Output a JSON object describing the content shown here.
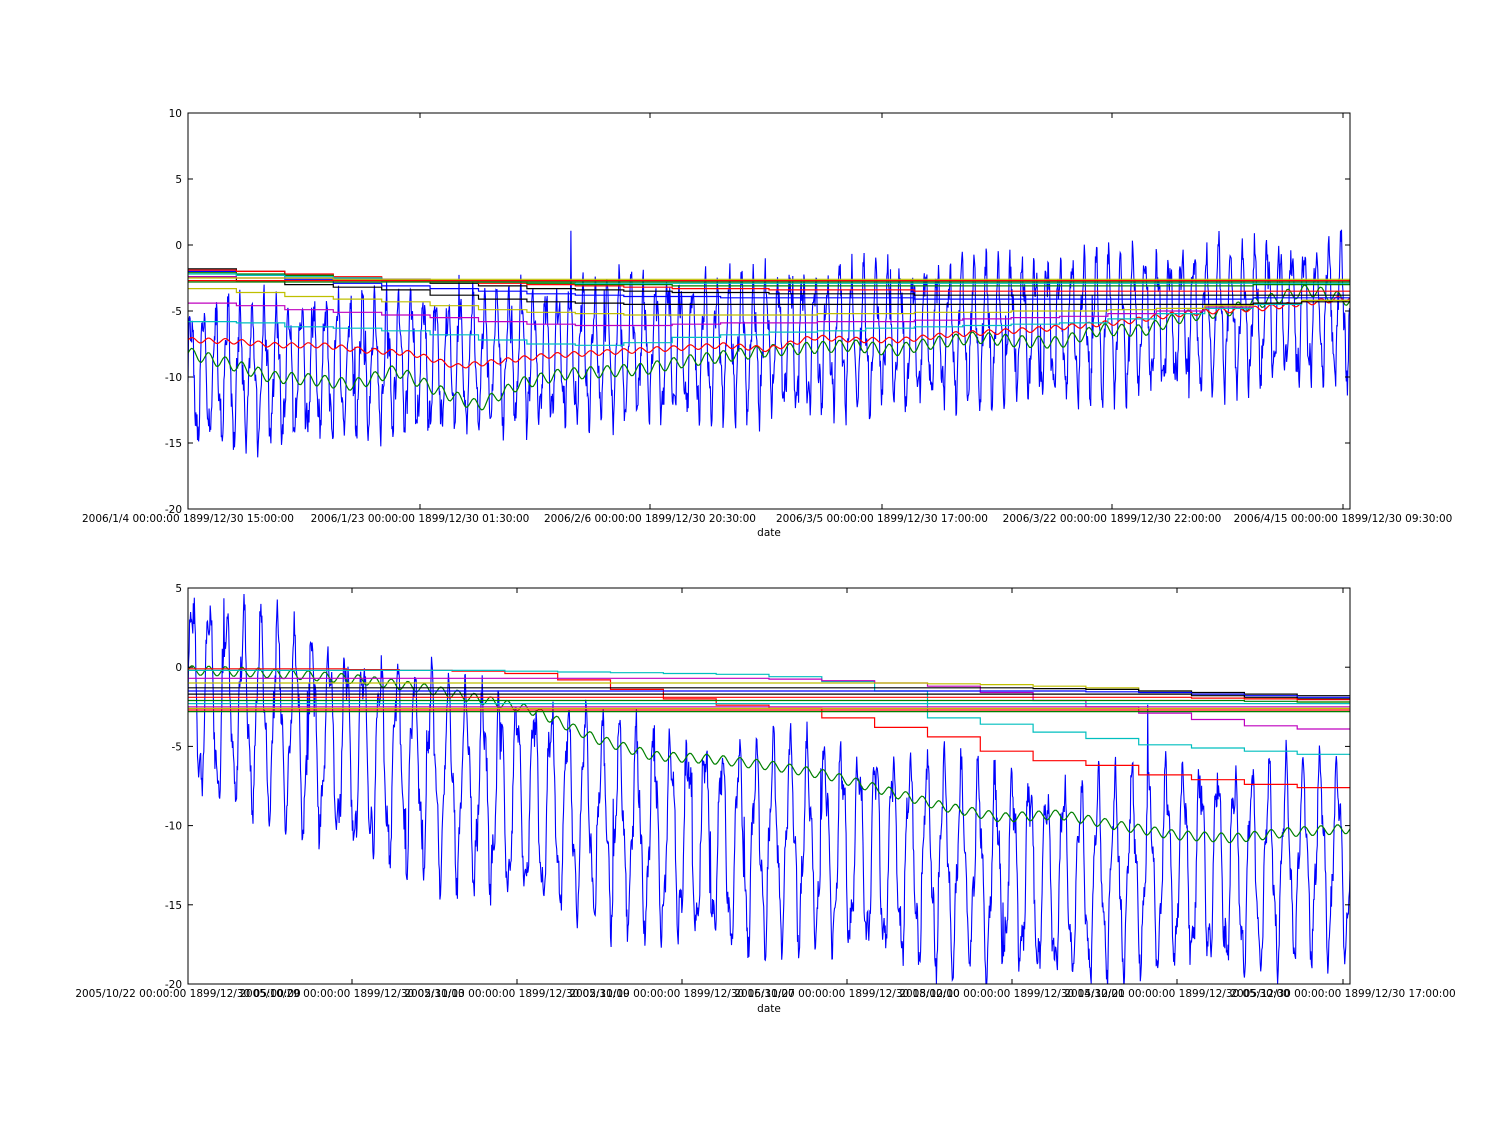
{
  "chart_data": [
    {
      "type": "line",
      "xlabel": "date",
      "ylabel": "",
      "ylim": [
        -20,
        10
      ],
      "yticks": [
        -20,
        -15,
        -10,
        -5,
        0,
        5,
        10
      ],
      "xtick_labels": [
        "2006/1/4 00:00:00 1899/12/30 15:00:00",
        "2006/1/23 00:00:00 1899/12/30 01:30:00",
        "2006/2/6 00:00:00 1899/12/30 20:30:00",
        "2006/3/5 00:00:00 1899/12/30 17:00:00",
        "2006/3/22 00:00:00 1899/12/30 22:00:00",
        "2006/4/15 00:00:00 1899/12/30 09:30:00"
      ],
      "grid": false,
      "series": [
        {
          "color": "#0000ff",
          "kind": "oscillating",
          "start": -10,
          "end": -5,
          "amp": 4.5,
          "cycles": 95,
          "noise": 2.5,
          "seed": 1
        },
        {
          "color": "#008000",
          "kind": "wavy",
          "values": [
            -8.2,
            -9.0,
            -10.0,
            -10.2,
            -10.6,
            -9.5,
            -11.0,
            -12.2,
            -10.5,
            -9.8,
            -9.6,
            -9.4,
            -8.8,
            -8.4,
            -8.0,
            -7.8,
            -7.6,
            -8.0,
            -7.4,
            -7.0,
            -7.3,
            -7.4,
            -6.4,
            -6.5,
            -5.4,
            -5.0,
            -4.2,
            -3.4,
            -4.2
          ],
          "amp": 0.45
        },
        {
          "color": "#ff0000",
          "kind": "wavy",
          "values": [
            -7.2,
            -7.3,
            -7.6,
            -7.6,
            -8.0,
            -8.2,
            -9.2,
            -8.8,
            -8.4,
            -8.2,
            -8.0,
            -7.8,
            -7.6,
            -7.9,
            -7.0,
            -7.2,
            -7.2,
            -6.8,
            -6.6,
            -6.4,
            -6.1,
            -5.8,
            -5.3,
            -5.0,
            -4.8,
            -4.4,
            -4.0
          ],
          "amp": 0.2
        },
        {
          "color": "#00bfbf",
          "kind": "steps",
          "values": [
            -5.8,
            -5.9,
            -6.2,
            -6.3,
            -6.5,
            -6.8,
            -7.2,
            -7.5,
            -7.6,
            -7.4,
            -7.0,
            -6.8,
            -6.6,
            -6.5,
            -6.3,
            -6.2,
            -6.1,
            -6.0,
            -5.9,
            -5.6,
            -5.2,
            -4.8,
            -4.5,
            -4.2
          ]
        },
        {
          "color": "#bf00bf",
          "kind": "steps",
          "values": [
            -4.4,
            -4.6,
            -4.9,
            -5.1,
            -5.3,
            -5.5,
            -5.8,
            -6.0,
            -6.1,
            -6.1,
            -6.0,
            -5.9,
            -5.9,
            -5.8,
            -5.8,
            -5.7,
            -5.6,
            -5.5,
            -5.4,
            -5.2,
            -5.0,
            -4.7,
            -4.4,
            -4.2
          ]
        },
        {
          "color": "#bfbf00",
          "kind": "steps",
          "values": [
            -3.3,
            -3.6,
            -3.9,
            -4.1,
            -4.3,
            -4.6,
            -4.9,
            -5.1,
            -5.2,
            -5.3,
            -5.3,
            -5.3,
            -5.3,
            -5.2,
            -5.2,
            -5.1,
            -5.1,
            -5.0,
            -5.0,
            -4.9,
            -4.8,
            -4.6,
            -4.4,
            -4.2
          ]
        },
        {
          "color": "#000000",
          "kind": "steps",
          "values": [
            -2.4,
            -2.7,
            -3.0,
            -3.2,
            -3.4,
            -3.8,
            -4.1,
            -4.3,
            -4.4,
            -4.5,
            -4.5,
            -4.5,
            -4.5,
            -4.5,
            -4.5,
            -4.5,
            -4.5,
            -4.5,
            -4.5,
            -4.5,
            -4.5,
            -4.5,
            -4.4,
            -4.3
          ]
        },
        {
          "color": "#0000ff",
          "kind": "steps",
          "values": [
            -2.0,
            -2.3,
            -2.6,
            -2.9,
            -3.1,
            -3.3,
            -3.5,
            -3.7,
            -3.8,
            -3.9,
            -3.9,
            -4.0,
            -4.0,
            -4.0,
            -4.0,
            -4.1,
            -4.1,
            -4.1,
            -4.1,
            -4.1,
            -4.1,
            -4.1,
            -4.0,
            -4.0
          ]
        },
        {
          "color": "#000000",
          "kind": "steps",
          "values": [
            -1.8,
            -2.0,
            -2.3,
            -2.5,
            -2.7,
            -2.9,
            -3.1,
            -3.3,
            -3.4,
            -3.5,
            -3.6,
            -3.6,
            -3.7,
            -3.7,
            -3.7,
            -3.8,
            -3.8,
            -3.8,
            -3.8,
            -3.8,
            -3.8,
            -3.8,
            -3.8,
            -3.8
          ]
        },
        {
          "color": "#ff0000",
          "kind": "steps",
          "values": [
            -1.9,
            -2.0,
            -2.2,
            -2.4,
            -2.6,
            -2.8,
            -2.9,
            -3.0,
            -3.1,
            -3.2,
            -3.3,
            -3.3,
            -3.4,
            -3.4,
            -3.4,
            -3.5,
            -3.5,
            -3.5,
            -3.5,
            -3.5,
            -3.5,
            -3.5,
            -3.5,
            -3.5
          ]
        },
        {
          "color": "#008000",
          "kind": "steps",
          "values": [
            -2.1,
            -2.2,
            -2.3,
            -2.5,
            -2.6,
            -2.7,
            -2.8,
            -2.9,
            -3.0,
            -3.0,
            -3.1,
            -3.1,
            -3.1,
            -3.1,
            -3.1,
            -3.1,
            -3.1,
            -3.1,
            -3.1,
            -3.1,
            -3.1,
            -3.1,
            -3.0,
            -3.0
          ]
        },
        {
          "color": "#00bfbf",
          "kind": "steps",
          "values": [
            -2.2,
            -2.3,
            -2.4,
            -2.5,
            -2.6,
            -2.7,
            -2.8,
            -2.8,
            -2.9,
            -2.9,
            -2.9,
            -2.9,
            -2.9,
            -2.9,
            -2.9,
            -2.9,
            -2.9,
            -2.9,
            -2.9,
            -2.9,
            -2.9,
            -2.9,
            -2.9,
            -2.9
          ]
        },
        {
          "color": "#bf00bf",
          "kind": "steps",
          "values": [
            -2.4,
            -2.5,
            -2.5,
            -2.6,
            -2.6,
            -2.7,
            -2.7,
            -2.7,
            -2.7,
            -2.7,
            -2.7,
            -2.7,
            -2.7,
            -2.7,
            -2.7,
            -2.7,
            -2.7,
            -2.7,
            -2.7,
            -2.7,
            -2.7,
            -2.7,
            -2.7,
            -2.7
          ]
        },
        {
          "color": "#bfbf00",
          "kind": "steps",
          "values": [
            -2.5,
            -2.5,
            -2.5,
            -2.6,
            -2.6,
            -2.6,
            -2.6,
            -2.6,
            -2.6,
            -2.6,
            -2.6,
            -2.6,
            -2.6,
            -2.6,
            -2.6,
            -2.6,
            -2.6,
            -2.6,
            -2.6,
            -2.6,
            -2.6,
            -2.6,
            -2.6,
            -2.6
          ]
        },
        {
          "color": "#ff0000",
          "kind": "steps",
          "values": [
            -2.7,
            -2.7,
            -2.7,
            -2.7,
            -2.7,
            -2.7,
            -2.7,
            -2.7,
            -2.7,
            -2.7,
            -2.7,
            -2.7,
            -2.7,
            -2.7,
            -2.7,
            -2.7,
            -2.7,
            -2.7,
            -2.7,
            -2.7,
            -2.7,
            -2.7,
            -2.7,
            -2.7
          ]
        },
        {
          "color": "#008000",
          "kind": "steps",
          "values": [
            -2.8,
            -2.8,
            -2.8,
            -2.8,
            -2.8,
            -2.8,
            -2.8,
            -2.8,
            -2.8,
            -2.8,
            -2.8,
            -2.8,
            -2.8,
            -2.8,
            -2.8,
            -2.8,
            -2.8,
            -2.8,
            -2.8,
            -2.8,
            -2.8,
            -2.8,
            -2.8,
            -2.8
          ]
        }
      ]
    },
    {
      "type": "line",
      "xlabel": "date",
      "ylabel": "",
      "ylim": [
        -20,
        5
      ],
      "yticks": [
        -20,
        -15,
        -10,
        -5,
        0,
        5
      ],
      "xtick_labels": [
        "2005/10/22 00:00:00 1899/12/30 05:00:00",
        "2005/10/29 00:00:00 1899/12/30 02:30:00",
        "2005/11/13 00:00:00 1899/12/30 02:30:00",
        "2005/11/19 00:00:00 1899/12/30 16:30:00",
        "2005/11/27 00:00:00 1899/12/30 18:00:00",
        "2005/12/10 00:00:00 1899/12/30 14:30:00",
        "2005/12/21 00:00:00 1899/12/30 05:30:00",
        "2005/12/30 00:00:00 1899/12/30 17:00:00"
      ],
      "grid": false,
      "series": [
        {
          "color": "#0000ff",
          "kind": "oscillating",
          "values": [
            -1.5,
            -2.5,
            -3.5,
            -5.0,
            -6.0,
            -7.0,
            -8.0,
            -8.5,
            -9.5,
            -10.5,
            -11.0,
            -11.5,
            -11.0,
            -11.5,
            -12.0,
            -12.5,
            -13.0,
            -13.5,
            -13.5,
            -12.5,
            -12.5,
            -13.0,
            -12.0,
            -12.0
          ],
          "amp": 5.5,
          "cycles": 68,
          "noise": 2.0,
          "seed": 7
        },
        {
          "color": "#008000",
          "kind": "wavy",
          "values": [
            -0.2,
            -0.3,
            -0.5,
            -0.8,
            -1.3,
            -2.0,
            -2.8,
            -4.5,
            -5.6,
            -5.8,
            -6.2,
            -6.8,
            -7.8,
            -8.8,
            -9.5,
            -9.3,
            -10.0,
            -10.6,
            -10.8,
            -10.4,
            -10.2
          ],
          "amp": 0.3
        },
        {
          "color": "#ff0000",
          "kind": "steps",
          "values": [
            -0.1,
            -0.1,
            -0.1,
            -0.15,
            -0.2,
            -0.25,
            -0.4,
            -0.8,
            -1.4,
            -2.0,
            -2.4,
            -2.6,
            -3.2,
            -3.8,
            -4.4,
            -5.3,
            -5.9,
            -6.2,
            -6.8,
            -7.1,
            -7.4,
            -7.6
          ]
        },
        {
          "color": "#00bfbf",
          "kind": "steps",
          "values": [
            -0.2,
            -0.2,
            -0.2,
            -0.2,
            -0.2,
            -0.2,
            -0.25,
            -0.3,
            -0.35,
            -0.4,
            -0.45,
            -0.6,
            -0.9,
            -1.5,
            -3.2,
            -3.6,
            -4.1,
            -4.5,
            -4.9,
            -5.1,
            -5.3,
            -5.5
          ]
        },
        {
          "color": "#bf00bf",
          "kind": "steps",
          "values": [
            -0.7,
            -0.7,
            -0.7,
            -0.7,
            -0.7,
            -0.7,
            -0.7,
            -0.7,
            -0.7,
            -0.7,
            -0.7,
            -0.75,
            -0.85,
            -1.0,
            -1.2,
            -1.6,
            -2.1,
            -2.5,
            -2.9,
            -3.3,
            -3.7,
            -3.9
          ]
        },
        {
          "color": "#bfbf00",
          "kind": "steps",
          "values": [
            -1.0,
            -1.0,
            -1.0,
            -1.0,
            -1.0,
            -1.0,
            -1.0,
            -1.0,
            -1.0,
            -1.0,
            -1.0,
            -1.0,
            -1.0,
            -1.0,
            -1.05,
            -1.1,
            -1.2,
            -1.3,
            -1.5,
            -1.7,
            -2.0,
            -2.2
          ]
        },
        {
          "color": "#000000",
          "kind": "steps",
          "values": [
            -1.3,
            -1.3,
            -1.3,
            -1.3,
            -1.3,
            -1.3,
            -1.3,
            -1.3,
            -1.3,
            -1.3,
            -1.3,
            -1.3,
            -1.3,
            -1.3,
            -1.3,
            -1.3,
            -1.35,
            -1.4,
            -1.5,
            -1.6,
            -1.7,
            -1.8
          ]
        },
        {
          "color": "#0000ff",
          "kind": "steps",
          "values": [
            -1.5,
            -1.5,
            -1.5,
            -1.5,
            -1.5,
            -1.5,
            -1.5,
            -1.5,
            -1.5,
            -1.5,
            -1.5,
            -1.5,
            -1.5,
            -1.5,
            -1.5,
            -1.5,
            -1.5,
            -1.55,
            -1.6,
            -1.7,
            -1.8,
            -1.9
          ]
        },
        {
          "color": "#000000",
          "kind": "steps",
          "values": [
            -1.7,
            -1.7,
            -1.7,
            -1.7,
            -1.7,
            -1.7,
            -1.7,
            -1.7,
            -1.7,
            -1.7,
            -1.7,
            -1.7,
            -1.7,
            -1.7,
            -1.7,
            -1.7,
            -1.7,
            -1.7,
            -1.7,
            -1.8,
            -1.9,
            -2.0
          ]
        },
        {
          "color": "#ff0000",
          "kind": "steps",
          "values": [
            -1.9,
            -1.9,
            -1.9,
            -1.9,
            -1.9,
            -1.9,
            -1.9,
            -1.9,
            -1.9,
            -1.9,
            -1.9,
            -1.9,
            -1.9,
            -1.9,
            -1.9,
            -1.9,
            -1.9,
            -1.9,
            -1.9,
            -1.95,
            -2.0,
            -2.05
          ]
        },
        {
          "color": "#008000",
          "kind": "steps",
          "values": [
            -2.1,
            -2.1,
            -2.1,
            -2.1,
            -2.1,
            -2.1,
            -2.1,
            -2.1,
            -2.1,
            -2.1,
            -2.1,
            -2.1,
            -2.1,
            -2.1,
            -2.1,
            -2.1,
            -2.1,
            -2.1,
            -2.1,
            -2.1,
            -2.15,
            -2.2
          ]
        },
        {
          "color": "#00bfbf",
          "kind": "steps",
          "values": [
            -2.3,
            -2.3,
            -2.3,
            -2.3,
            -2.3,
            -2.3,
            -2.3,
            -2.3,
            -2.3,
            -2.3,
            -2.3,
            -2.3,
            -2.3,
            -2.3,
            -2.3,
            -2.3,
            -2.3,
            -2.3,
            -2.3,
            -2.3,
            -2.3,
            -2.3
          ]
        },
        {
          "color": "#bf00bf",
          "kind": "steps",
          "values": [
            -2.5,
            -2.5,
            -2.5,
            -2.5,
            -2.5,
            -2.5,
            -2.5,
            -2.5,
            -2.5,
            -2.5,
            -2.5,
            -2.5,
            -2.5,
            -2.5,
            -2.5,
            -2.5,
            -2.5,
            -2.5,
            -2.5,
            -2.5,
            -2.5,
            -2.5
          ]
        },
        {
          "color": "#bfbf00",
          "kind": "steps",
          "values": [
            -2.6,
            -2.6,
            -2.6,
            -2.6,
            -2.6,
            -2.6,
            -2.6,
            -2.6,
            -2.6,
            -2.6,
            -2.6,
            -2.6,
            -2.6,
            -2.6,
            -2.6,
            -2.6,
            -2.6,
            -2.6,
            -2.6,
            -2.6,
            -2.6,
            -2.6
          ]
        },
        {
          "color": "#ff0000",
          "kind": "steps",
          "values": [
            -2.7,
            -2.7,
            -2.7,
            -2.7,
            -2.7,
            -2.7,
            -2.7,
            -2.7,
            -2.7,
            -2.7,
            -2.7,
            -2.7,
            -2.7,
            -2.7,
            -2.7,
            -2.7,
            -2.7,
            -2.7,
            -2.7,
            -2.7,
            -2.7,
            -2.7
          ]
        },
        {
          "color": "#008000",
          "kind": "steps",
          "values": [
            -2.8,
            -2.8,
            -2.8,
            -2.8,
            -2.8,
            -2.8,
            -2.8,
            -2.8,
            -2.8,
            -2.8,
            -2.8,
            -2.8,
            -2.8,
            -2.8,
            -2.8,
            -2.8,
            -2.8,
            -2.8,
            -2.8,
            -2.8,
            -2.8,
            -2.8
          ]
        }
      ]
    }
  ]
}
